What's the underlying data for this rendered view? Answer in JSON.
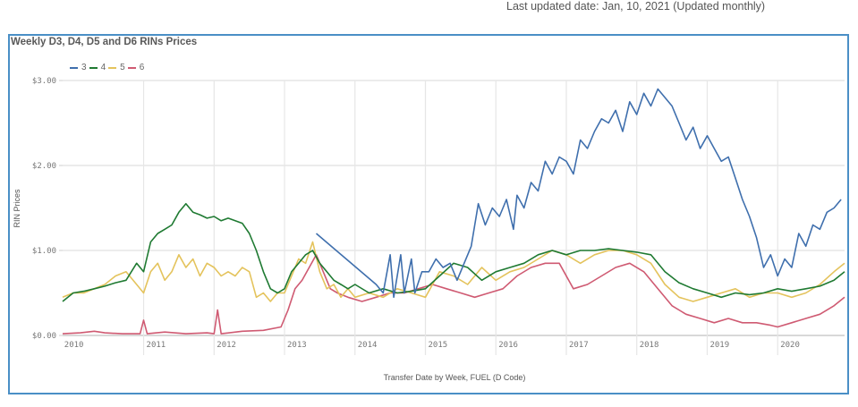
{
  "header": {
    "last_updated": "Last updated date: Jan, 10, 2021 (Updated monthly)"
  },
  "colors": {
    "frame": "#4a8fc6",
    "grid": "#e6e6e6",
    "series_3": "#3f6fad",
    "series_4": "#1f7a32",
    "series_5": "#e4c35c",
    "series_6": "#cf5a72"
  },
  "chart_data": {
    "type": "line",
    "title": "Weekly D3, D4, D5 and D6 RINs Prices",
    "xlabel": "Transfer Date by Week, FUEL (D Code)",
    "ylabel": "RIN Prices",
    "ylim": [
      0,
      3
    ],
    "xlim": [
      2009.85,
      2020.95
    ],
    "grid": true,
    "legend_position": "top-left",
    "y_ticks": [
      {
        "value": 0,
        "label": "$0.00"
      },
      {
        "value": 1,
        "label": "$1.00"
      },
      {
        "value": 2,
        "label": "$2.00"
      },
      {
        "value": 3,
        "label": "$3.00"
      }
    ],
    "x_ticks": [
      {
        "value": 2010,
        "label": "2010"
      },
      {
        "value": 2011,
        "label": "2011"
      },
      {
        "value": 2012,
        "label": "2012"
      },
      {
        "value": 2013,
        "label": "2013"
      },
      {
        "value": 2014,
        "label": "2014"
      },
      {
        "value": 2015,
        "label": "2015"
      },
      {
        "value": 2016,
        "label": "2016"
      },
      {
        "value": 2017,
        "label": "2017"
      },
      {
        "value": 2018,
        "label": "2018"
      },
      {
        "value": 2019,
        "label": "2019"
      },
      {
        "value": 2020,
        "label": "2020"
      }
    ],
    "series": [
      {
        "name": "3",
        "x": [
          2013.45,
          2014.3,
          2014.4,
          2014.5,
          2014.55,
          2014.65,
          2014.7,
          2014.8,
          2014.85,
          2014.95,
          2015.05,
          2015.15,
          2015.25,
          2015.35,
          2015.45,
          2015.55,
          2015.65,
          2015.75,
          2015.85,
          2015.95,
          2016.05,
          2016.15,
          2016.25,
          2016.3,
          2016.4,
          2016.5,
          2016.6,
          2016.7,
          2016.8,
          2016.9,
          2017.0,
          2017.1,
          2017.2,
          2017.3,
          2017.4,
          2017.5,
          2017.6,
          2017.7,
          2017.8,
          2017.9,
          2018.0,
          2018.1,
          2018.2,
          2018.3,
          2018.4,
          2018.5,
          2018.6,
          2018.7,
          2018.8,
          2018.9,
          2019.0,
          2019.1,
          2019.2,
          2019.3,
          2019.4,
          2019.5,
          2019.6,
          2019.7,
          2019.8,
          2019.9,
          2020.0,
          2020.1,
          2020.2,
          2020.3,
          2020.4,
          2020.5,
          2020.6,
          2020.7,
          2020.8,
          2020.9
        ],
        "values": [
          1.2,
          0.6,
          0.5,
          0.95,
          0.45,
          0.95,
          0.5,
          0.9,
          0.5,
          0.75,
          0.75,
          0.9,
          0.8,
          0.85,
          0.65,
          0.85,
          1.05,
          1.55,
          1.3,
          1.5,
          1.4,
          1.6,
          1.25,
          1.65,
          1.5,
          1.8,
          1.7,
          2.05,
          1.9,
          2.1,
          2.05,
          1.9,
          2.3,
          2.2,
          2.4,
          2.55,
          2.5,
          2.65,
          2.4,
          2.75,
          2.6,
          2.85,
          2.7,
          2.9,
          2.8,
          2.7,
          2.5,
          2.3,
          2.45,
          2.2,
          2.35,
          2.2,
          2.05,
          2.1,
          1.85,
          1.6,
          1.4,
          1.15,
          0.8,
          0.95,
          0.7,
          0.9,
          0.8,
          1.2,
          1.05,
          1.3,
          1.25,
          1.45,
          1.5,
          1.6
        ]
      },
      {
        "name": "4",
        "x": [
          2009.85,
          2010.0,
          2010.15,
          2010.3,
          2010.45,
          2010.6,
          2010.75,
          2010.9,
          2011.0,
          2011.1,
          2011.2,
          2011.3,
          2011.4,
          2011.5,
          2011.6,
          2011.7,
          2011.8,
          2011.9,
          2012.0,
          2012.1,
          2012.2,
          2012.3,
          2012.4,
          2012.5,
          2012.6,
          2012.7,
          2012.8,
          2012.9,
          2013.0,
          2013.1,
          2013.2,
          2013.3,
          2013.4,
          2013.5,
          2013.6,
          2013.7,
          2013.8,
          2013.9,
          2014.0,
          2014.2,
          2014.4,
          2014.6,
          2014.8,
          2015.0,
          2015.2,
          2015.4,
          2015.6,
          2015.8,
          2016.0,
          2016.2,
          2016.4,
          2016.6,
          2016.8,
          2017.0,
          2017.2,
          2017.4,
          2017.6,
          2017.8,
          2018.0,
          2018.2,
          2018.4,
          2018.6,
          2018.8,
          2019.0,
          2019.2,
          2019.4,
          2019.6,
          2019.8,
          2020.0,
          2020.2,
          2020.4,
          2020.6,
          2020.8,
          2020.95
        ],
        "values": [
          0.4,
          0.5,
          0.52,
          0.55,
          0.58,
          0.62,
          0.65,
          0.85,
          0.75,
          1.1,
          1.2,
          1.25,
          1.3,
          1.45,
          1.55,
          1.45,
          1.42,
          1.38,
          1.4,
          1.35,
          1.38,
          1.35,
          1.32,
          1.2,
          1.0,
          0.75,
          0.55,
          0.5,
          0.55,
          0.75,
          0.85,
          0.95,
          1.0,
          0.85,
          0.75,
          0.65,
          0.6,
          0.55,
          0.6,
          0.5,
          0.55,
          0.5,
          0.52,
          0.55,
          0.7,
          0.85,
          0.8,
          0.65,
          0.75,
          0.8,
          0.85,
          0.95,
          1.0,
          0.95,
          1.0,
          1.0,
          1.02,
          1.0,
          0.98,
          0.95,
          0.75,
          0.62,
          0.55,
          0.5,
          0.45,
          0.5,
          0.48,
          0.5,
          0.55,
          0.52,
          0.55,
          0.58,
          0.65,
          0.75
        ]
      },
      {
        "name": "5",
        "x": [
          2009.85,
          2010.0,
          2010.15,
          2010.3,
          2010.45,
          2010.6,
          2010.75,
          2010.9,
          2011.0,
          2011.1,
          2011.2,
          2011.3,
          2011.4,
          2011.5,
          2011.6,
          2011.7,
          2011.8,
          2011.9,
          2012.0,
          2012.1,
          2012.2,
          2012.3,
          2012.4,
          2012.5,
          2012.6,
          2012.7,
          2012.8,
          2012.9,
          2013.0,
          2013.1,
          2013.2,
          2013.3,
          2013.4,
          2013.5,
          2013.6,
          2013.7,
          2013.8,
          2013.9,
          2014.0,
          2014.2,
          2014.4,
          2014.6,
          2014.8,
          2015.0,
          2015.2,
          2015.4,
          2015.6,
          2015.8,
          2016.0,
          2016.2,
          2016.4,
          2016.6,
          2016.8,
          2017.0,
          2017.2,
          2017.4,
          2017.6,
          2017.8,
          2018.0,
          2018.2,
          2018.4,
          2018.6,
          2018.8,
          2019.0,
          2019.2,
          2019.4,
          2019.6,
          2019.8,
          2020.0,
          2020.2,
          2020.4,
          2020.6,
          2020.8,
          2020.95
        ],
        "values": [
          0.45,
          0.5,
          0.5,
          0.55,
          0.6,
          0.7,
          0.75,
          0.6,
          0.5,
          0.75,
          0.85,
          0.65,
          0.75,
          0.95,
          0.8,
          0.9,
          0.7,
          0.85,
          0.8,
          0.7,
          0.75,
          0.7,
          0.8,
          0.75,
          0.45,
          0.5,
          0.4,
          0.5,
          0.5,
          0.7,
          0.9,
          0.85,
          1.1,
          0.75,
          0.55,
          0.6,
          0.45,
          0.55,
          0.45,
          0.5,
          0.45,
          0.55,
          0.5,
          0.45,
          0.75,
          0.7,
          0.6,
          0.8,
          0.65,
          0.75,
          0.8,
          0.9,
          1.0,
          0.95,
          0.85,
          0.95,
          1.0,
          1.0,
          0.95,
          0.85,
          0.6,
          0.45,
          0.4,
          0.45,
          0.5,
          0.55,
          0.45,
          0.5,
          0.5,
          0.45,
          0.5,
          0.6,
          0.75,
          0.85
        ]
      },
      {
        "name": "6",
        "x": [
          2009.85,
          2010.1,
          2010.3,
          2010.45,
          2010.7,
          2010.95,
          2011.0,
          2011.05,
          2011.3,
          2011.6,
          2011.9,
          2012.0,
          2012.05,
          2012.1,
          2012.4,
          2012.7,
          2012.95,
          2013.05,
          2013.15,
          2013.25,
          2013.35,
          2013.45,
          2013.55,
          2013.65,
          2013.75,
          2013.9,
          2014.1,
          2014.3,
          2014.5,
          2014.7,
          2014.9,
          2015.1,
          2015.3,
          2015.5,
          2015.7,
          2015.9,
          2016.1,
          2016.3,
          2016.5,
          2016.7,
          2016.9,
          2017.1,
          2017.3,
          2017.5,
          2017.7,
          2017.9,
          2018.1,
          2018.3,
          2018.5,
          2018.7,
          2018.9,
          2019.1,
          2019.3,
          2019.5,
          2019.7,
          2019.9,
          2020.0,
          2020.2,
          2020.4,
          2020.6,
          2020.8,
          2020.95
        ],
        "values": [
          0.02,
          0.03,
          0.05,
          0.03,
          0.02,
          0.02,
          0.18,
          0.02,
          0.04,
          0.02,
          0.03,
          0.02,
          0.3,
          0.02,
          0.05,
          0.06,
          0.1,
          0.3,
          0.55,
          0.65,
          0.8,
          0.95,
          0.75,
          0.55,
          0.5,
          0.45,
          0.4,
          0.45,
          0.5,
          0.5,
          0.55,
          0.6,
          0.55,
          0.5,
          0.45,
          0.5,
          0.55,
          0.7,
          0.8,
          0.85,
          0.85,
          0.55,
          0.6,
          0.7,
          0.8,
          0.85,
          0.75,
          0.55,
          0.35,
          0.25,
          0.2,
          0.15,
          0.2,
          0.15,
          0.15,
          0.12,
          0.1,
          0.15,
          0.2,
          0.25,
          0.35,
          0.45
        ]
      }
    ]
  }
}
